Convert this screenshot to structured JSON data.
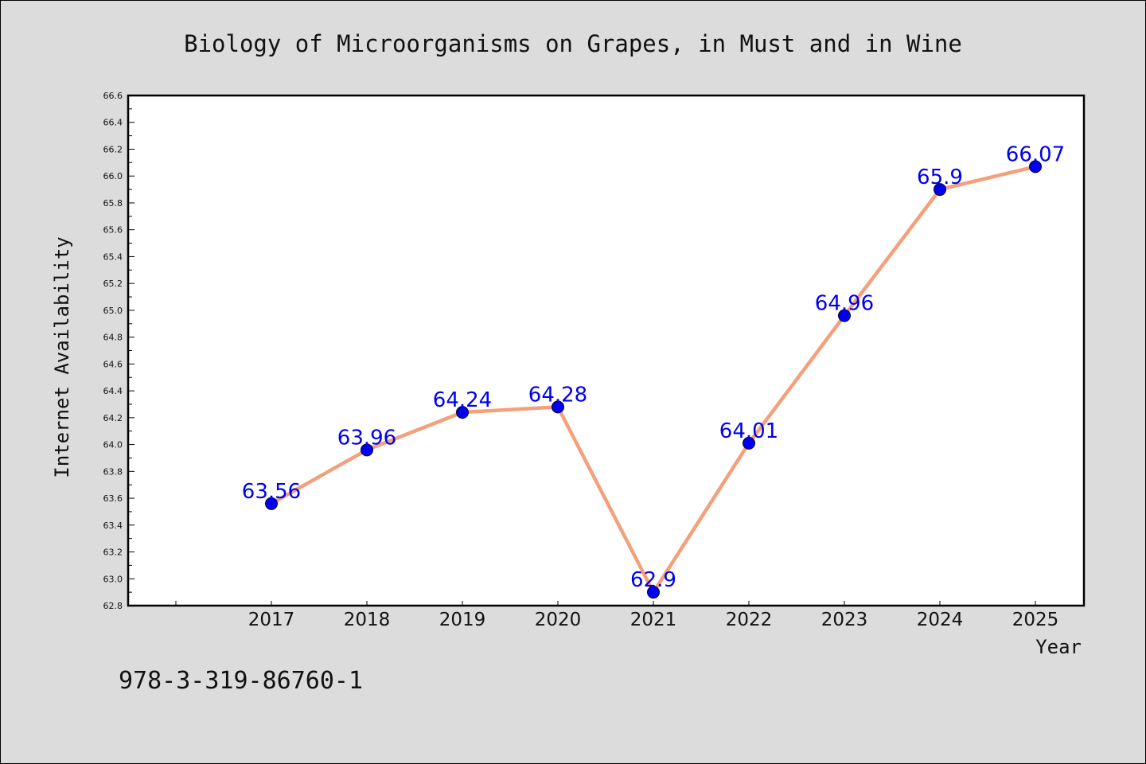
{
  "chart_data": {
    "type": "line",
    "title": "Biology of Microorganisms on Grapes, in Must and in Wine",
    "xlabel": "Year",
    "ylabel": "Internet Availability",
    "categories": [
      "2017",
      "2018",
      "2019",
      "2020",
      "2021",
      "2022",
      "2023",
      "2024",
      "2025"
    ],
    "series": [
      {
        "values": [
          63.56,
          63.96,
          64.24,
          64.28,
          62.9,
          64.01,
          64.96,
          65.9,
          66.07
        ],
        "data_labels": [
          "63.56",
          "63.96",
          "64.24",
          "64.28",
          "62.9",
          "64.01",
          "64.96",
          "65.9",
          "66.07"
        ]
      }
    ],
    "ylim": [
      62.8,
      66.6
    ],
    "y_ticks": [
      "62.8",
      "63.0",
      "63.2",
      "63.4",
      "63.6",
      "63.8",
      "64.0",
      "64.2",
      "64.4",
      "64.6",
      "64.8",
      "65.0",
      "65.2",
      "65.4",
      "65.6",
      "65.8",
      "66.0",
      "66.2",
      "66.4",
      "66.6"
    ],
    "grid": false,
    "legend": "none",
    "colors": {
      "line": "#f4a07a",
      "marker": "#0000ee",
      "label": "#0000ee",
      "background": "#dcdcdc",
      "plot_background": "#ffffff"
    }
  },
  "footer": {
    "isbn": "978-3-319-86760-1"
  }
}
